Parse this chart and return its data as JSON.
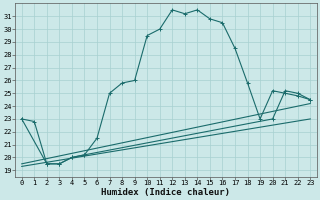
{
  "xlabel": "Humidex (Indice chaleur)",
  "bg_color": "#cce8e8",
  "line_color": "#1a6b6b",
  "xlim": [
    -0.5,
    23.5
  ],
  "ylim": [
    18.5,
    32.0
  ],
  "yticks": [
    19,
    20,
    21,
    22,
    23,
    24,
    25,
    26,
    27,
    28,
    29,
    30,
    31
  ],
  "xticks": [
    0,
    1,
    2,
    3,
    4,
    5,
    6,
    7,
    8,
    9,
    10,
    11,
    12,
    13,
    14,
    15,
    16,
    17,
    18,
    19,
    20,
    21,
    22,
    23
  ],
  "curve1_x": [
    0,
    1,
    2,
    3,
    4,
    5,
    6,
    7,
    8,
    9,
    10,
    11,
    12,
    13,
    14,
    15,
    16,
    17,
    18,
    19,
    20,
    21,
    22,
    23
  ],
  "curve1_y": [
    23.0,
    22.8,
    19.5,
    19.5,
    20.0,
    20.2,
    21.5,
    25.0,
    25.8,
    26.0,
    29.5,
    30.0,
    31.5,
    31.2,
    31.5,
    30.8,
    30.5,
    28.5,
    25.8,
    23.0,
    25.2,
    25.0,
    24.8,
    24.5
  ],
  "curve2_x": [
    0,
    2,
    3,
    4,
    5,
    20,
    21,
    22,
    23
  ],
  "curve2_y": [
    23.0,
    19.5,
    19.5,
    20.0,
    20.2,
    23.0,
    25.2,
    25.0,
    24.5
  ],
  "curve3_x": [
    0,
    23
  ],
  "curve3_y": [
    19.5,
    24.2
  ],
  "curve4_x": [
    0,
    23
  ],
  "curve4_y": [
    19.3,
    23.0
  ]
}
